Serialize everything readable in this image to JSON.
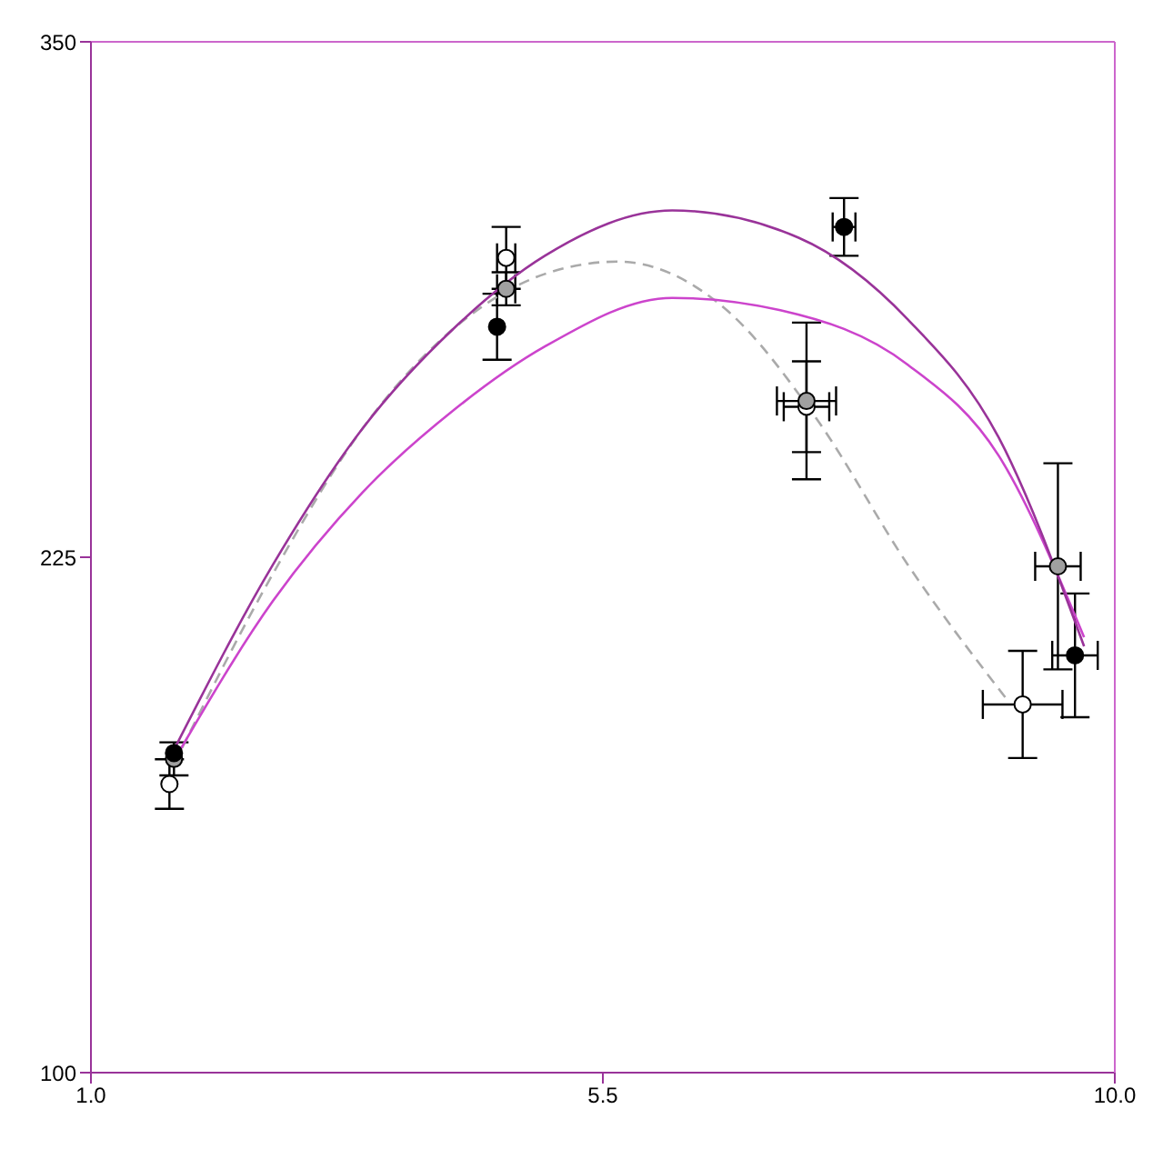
{
  "chart_data": {
    "type": "scatter",
    "xlim": [
      1,
      10
    ],
    "xticks": [
      {
        "value": 1,
        "label": "1.0"
      },
      {
        "value": 5.5,
        "label": "5.5"
      },
      {
        "value": 10,
        "label": "10.0"
      }
    ],
    "ylim": [
      100,
      350
    ],
    "yticks": [
      100,
      225,
      350
    ],
    "grid": false,
    "legend": false,
    "series": [
      {
        "type": "line",
        "marker": "none",
        "color": "#993399",
        "line_style": "solid",
        "x": [
          1.73,
          2.6,
          3.39,
          4.19,
          4.99,
          6.11,
          7.22,
          8.18,
          8.98,
          9.73
        ],
        "values": [
          178.3,
          223.2,
          256.3,
          280.5,
          298.1,
          309.1,
          302.5,
          282.7,
          254,
          203.4
        ]
      },
      {
        "type": "line",
        "marker": "none",
        "color": "#cc44cc",
        "line_style": "solid",
        "x": [
          1.73,
          2.6,
          3.39,
          4.19,
          4.99,
          6.11,
          7.06,
          8.18,
          8.98,
          9.73
        ],
        "values": [
          175.7,
          214.4,
          240.8,
          260.7,
          276.1,
          287.9,
          284.9,
          271.7,
          249.6,
          205.6
        ]
      },
      {
        "type": "line",
        "marker": "none",
        "color": "#aaaaaa",
        "line_style": "dashed",
        "x": [
          1.73,
          2.6,
          3.39,
          4.19,
          4.99,
          5.63,
          6.59,
          7.38,
          8.18,
          9.06
        ],
        "values": [
          174.8,
          221,
          256.3,
          280.5,
          293.7,
          296.7,
          284.9,
          258.5,
          223.2,
          190.2
        ]
      },
      {
        "marker": "circle",
        "color": "#000000",
        "x": [
          1.73,
          4.57,
          7.62,
          9.65
        ],
        "values": [
          177.5,
          280.9,
          305.1,
          201.2
        ],
        "errors": [
          null,
          8,
          7,
          15
        ],
        "xerrors": [
          null,
          null,
          0.1,
          0.2
        ]
      },
      {
        "marker": "circle",
        "color": "#a0a0a0",
        "x": [
          1.73,
          4.65,
          7.29,
          9.5
        ],
        "values": [
          176.1,
          290.1,
          262.9,
          222.8
        ],
        "errors": [
          4,
          4,
          19,
          25
        ],
        "xerrors": [
          null,
          0.08,
          0.26,
          0.2
        ]
      },
      {
        "marker": "circle",
        "color": "#ffffff",
        "x": [
          1.69,
          4.65,
          7.29,
          9.19
        ],
        "values": [
          170,
          297.6,
          261.5,
          189.3
        ],
        "errors": [
          6,
          7.5,
          11,
          13
        ],
        "xerrors": [
          null,
          0.08,
          0.2,
          0.35
        ]
      }
    ]
  }
}
